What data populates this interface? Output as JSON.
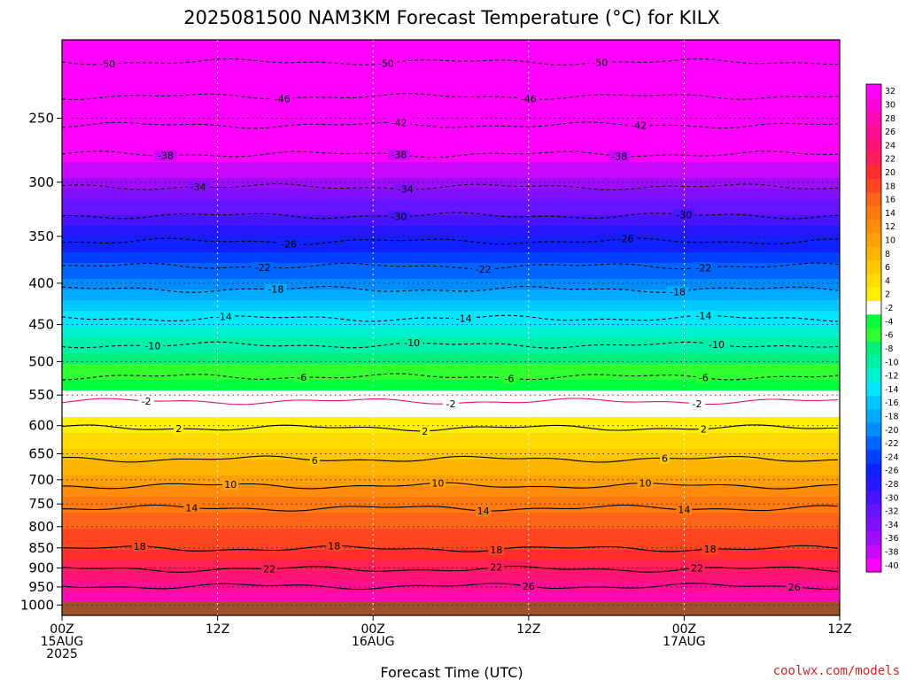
{
  "chart_data": {
    "type": "heatmap",
    "title": "2025081500 NAM3KM Forecast Temperature (°C) for KILX",
    "xlabel": "Forecast Time (UTC)",
    "ylabel": "",
    "x_ticks": [
      {
        "hours": 0,
        "l1": "00Z",
        "l2": "15AUG",
        "l3": "2025"
      },
      {
        "hours": 12,
        "l1": "12Z",
        "l2": "",
        "l3": ""
      },
      {
        "hours": 24,
        "l1": "00Z",
        "l2": "16AUG",
        "l3": ""
      },
      {
        "hours": 36,
        "l1": "12Z",
        "l2": "",
        "l3": ""
      },
      {
        "hours": 48,
        "l1": "00Z",
        "l2": "17AUG",
        "l3": ""
      },
      {
        "hours": 60,
        "l1": "12Z",
        "l2": "",
        "l3": ""
      }
    ],
    "xlim_hours": [
      0,
      60
    ],
    "y_ticks": [
      250,
      300,
      350,
      400,
      450,
      500,
      550,
      600,
      650,
      700,
      750,
      800,
      850,
      900,
      950,
      1000
    ],
    "ylim_hpa": [
      200,
      1030
    ],
    "y_scale": "log",
    "ground_level_hpa": 992,
    "ground_color": "#a0522d",
    "profile_hpa": [
      200,
      250,
      300,
      350,
      400,
      450,
      500,
      550,
      570,
      600,
      650,
      700,
      750,
      800,
      850,
      900,
      950,
      1000
    ],
    "profile_temp_c": [
      -52,
      -44,
      -35,
      -26,
      -19,
      -12,
      -6.5,
      -1,
      1,
      3,
      7,
      11,
      15,
      18,
      20,
      23,
      27,
      30
    ],
    "contours": [
      {
        "value": -50,
        "p": 213,
        "labels": [
          {
            "hours": 3.5
          },
          {
            "hours": 25
          },
          {
            "hours": 41.5
          }
        ]
      },
      {
        "value": -46,
        "p": 235,
        "labels": [
          {
            "hours": 17
          },
          {
            "hours": 36
          }
        ]
      },
      {
        "value": -42,
        "p": 255,
        "labels": [
          {
            "hours": 26
          },
          {
            "hours": 44.5
          }
        ]
      },
      {
        "value": -38,
        "p": 277,
        "labels": [
          {
            "hours": 8
          },
          {
            "hours": 26
          },
          {
            "hours": 43
          }
        ]
      },
      {
        "value": -34,
        "p": 304,
        "labels": [
          {
            "hours": 10.5
          },
          {
            "hours": 26.5
          }
        ]
      },
      {
        "value": -30,
        "p": 330,
        "labels": [
          {
            "hours": 26
          },
          {
            "hours": 48
          }
        ]
      },
      {
        "value": -26,
        "p": 355,
        "labels": [
          {
            "hours": 17.5
          },
          {
            "hours": 43.5
          }
        ]
      },
      {
        "value": -22,
        "p": 381,
        "labels": [
          {
            "hours": 15.5
          },
          {
            "hours": 32.5
          },
          {
            "hours": 49.5
          }
        ]
      },
      {
        "value": -18,
        "p": 407,
        "labels": [
          {
            "hours": 16.5
          },
          {
            "hours": 47.5
          }
        ]
      },
      {
        "value": -14,
        "p": 442,
        "labels": [
          {
            "hours": 12.5
          },
          {
            "hours": 31
          },
          {
            "hours": 49.5
          }
        ]
      },
      {
        "value": -10,
        "p": 477,
        "labels": [
          {
            "hours": 7
          },
          {
            "hours": 27
          },
          {
            "hours": 50.5
          }
        ]
      },
      {
        "value": -6,
        "p": 522,
        "labels": [
          {
            "hours": 18.5
          },
          {
            "hours": 34.5
          },
          {
            "hours": 49.5
          }
        ]
      },
      {
        "value": -2,
        "p": 560,
        "labels": [
          {
            "hours": 6.5
          },
          {
            "hours": 30
          },
          {
            "hours": 49
          }
        ]
      },
      {
        "value": 2,
        "p": 604,
        "labels": [
          {
            "hours": 9
          },
          {
            "hours": 28
          },
          {
            "hours": 49.5
          }
        ]
      },
      {
        "value": 6,
        "p": 660,
        "labels": [
          {
            "hours": 19.5
          },
          {
            "hours": 46.5
          }
        ]
      },
      {
        "value": 10,
        "p": 712,
        "labels": [
          {
            "hours": 13
          },
          {
            "hours": 29
          },
          {
            "hours": 45
          }
        ]
      },
      {
        "value": 14,
        "p": 759,
        "labels": [
          {
            "hours": 10
          },
          {
            "hours": 32.5
          },
          {
            "hours": 48
          }
        ]
      },
      {
        "value": 18,
        "p": 852,
        "labels": [
          {
            "hours": 6
          },
          {
            "hours": 21
          },
          {
            "hours": 33.5
          },
          {
            "hours": 50
          }
        ]
      },
      {
        "value": 22,
        "p": 903,
        "labels": [
          {
            "hours": 16
          },
          {
            "hours": 33.5
          },
          {
            "hours": 49
          }
        ]
      },
      {
        "value": 26,
        "p": 948,
        "labels": [
          {
            "hours": 36
          },
          {
            "hours": 56.5
          }
        ]
      }
    ],
    "colorbar": {
      "labels": [
        32,
        30,
        28,
        26,
        24,
        22,
        20,
        18,
        16,
        14,
        12,
        10,
        8,
        6,
        4,
        2,
        -2,
        -4,
        -6,
        -8,
        -10,
        -12,
        -14,
        -16,
        -18,
        -20,
        -22,
        -24,
        -26,
        -28,
        -30,
        -32,
        -34,
        -36,
        -38,
        -40
      ],
      "colors": [
        "#ff00ff",
        "#ff05dc",
        "#ff0ab4",
        "#ff0f96",
        "#ff1478",
        "#ff1e5a",
        "#ff2d2d",
        "#ff4620",
        "#ff6418",
        "#ff7a10",
        "#ff8c0a",
        "#ffa008",
        "#ffb400",
        "#ffc800",
        "#ffdc00",
        "#fff000",
        "#ffffff",
        "#00ff3c",
        "#30ff30",
        "#00f07a",
        "#00f0aa",
        "#00f0d2",
        "#00e6ff",
        "#00c8ff",
        "#00aaff",
        "#008cff",
        "#0064ff",
        "#0040ff",
        "#1020ff",
        "#2818ff",
        "#4614ff",
        "#6414ff",
        "#8210ff",
        "#a00cff",
        "#c808ff",
        "#ff00ff"
      ]
    }
  },
  "credit": "coolwx.com/models"
}
